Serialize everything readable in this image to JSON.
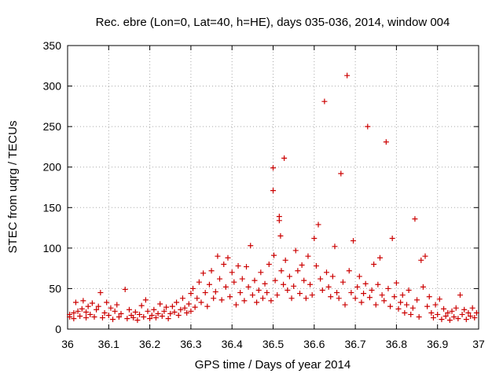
{
  "chart_data": {
    "type": "scatter",
    "title": "Rec. ebre (Lon=0, Lat=40, h=HE), days 035-036, 2014, window 004",
    "xlabel": "GPS time / Days of year 2014",
    "ylabel": "STEC from uqrg / TECUs",
    "xlim": [
      36,
      37
    ],
    "ylim": [
      0,
      350
    ],
    "xticks": [
      "36",
      "36.1",
      "36.2",
      "36.3",
      "36.4",
      "36.5",
      "36.6",
      "36.7",
      "36.8",
      "36.9",
      "37"
    ],
    "yticks": [
      "0",
      "50",
      "100",
      "150",
      "200",
      "250",
      "300",
      "350"
    ],
    "grid": true,
    "marker": "plus",
    "color": "#cc0000",
    "series": [
      {
        "name": "STEC",
        "points": [
          [
            36.005,
            15
          ],
          [
            36.005,
            18
          ],
          [
            36.015,
            13
          ],
          [
            36.015,
            20
          ],
          [
            36.02,
            33
          ],
          [
            36.025,
            22
          ],
          [
            36.03,
            16
          ],
          [
            36.035,
            25
          ],
          [
            36.038,
            35
          ],
          [
            36.045,
            14
          ],
          [
            36.045,
            21
          ],
          [
            36.05,
            28
          ],
          [
            36.055,
            18
          ],
          [
            36.06,
            32
          ],
          [
            36.065,
            15
          ],
          [
            36.07,
            24
          ],
          [
            36.075,
            28
          ],
          [
            36.08,
            45
          ],
          [
            36.085,
            14
          ],
          [
            36.09,
            20
          ],
          [
            36.095,
            33
          ],
          [
            36.1,
            17
          ],
          [
            36.105,
            26
          ],
          [
            36.11,
            12
          ],
          [
            36.115,
            22
          ],
          [
            36.12,
            30
          ],
          [
            36.125,
            15
          ],
          [
            36.13,
            19
          ],
          [
            36.14,
            49
          ],
          [
            36.145,
            13
          ],
          [
            36.15,
            24
          ],
          [
            36.155,
            17
          ],
          [
            36.16,
            14
          ],
          [
            36.165,
            21
          ],
          [
            36.17,
            11
          ],
          [
            36.175,
            18
          ],
          [
            36.18,
            29
          ],
          [
            36.185,
            15
          ],
          [
            36.19,
            36
          ],
          [
            36.195,
            22
          ],
          [
            36.2,
            13
          ],
          [
            36.205,
            17
          ],
          [
            36.21,
            24
          ],
          [
            36.215,
            14
          ],
          [
            36.22,
            19
          ],
          [
            36.225,
            31
          ],
          [
            36.23,
            16
          ],
          [
            36.235,
            22
          ],
          [
            36.24,
            27
          ],
          [
            36.245,
            13
          ],
          [
            36.25,
            19
          ],
          [
            36.255,
            28
          ],
          [
            36.26,
            21
          ],
          [
            36.265,
            33
          ],
          [
            36.27,
            17
          ],
          [
            36.275,
            24
          ],
          [
            36.28,
            38
          ],
          [
            36.285,
            26
          ],
          [
            36.29,
            20
          ],
          [
            36.295,
            31
          ],
          [
            36.3,
            44
          ],
          [
            36.3,
            22
          ],
          [
            36.305,
            50
          ],
          [
            36.31,
            27
          ],
          [
            36.315,
            38
          ],
          [
            36.32,
            58
          ],
          [
            36.325,
            33
          ],
          [
            36.33,
            69
          ],
          [
            36.335,
            45
          ],
          [
            36.34,
            28
          ],
          [
            36.345,
            55
          ],
          [
            36.35,
            72
          ],
          [
            36.355,
            38
          ],
          [
            36.36,
            46
          ],
          [
            36.365,
            90
          ],
          [
            36.37,
            62
          ],
          [
            36.375,
            36
          ],
          [
            36.38,
            80
          ],
          [
            36.385,
            52
          ],
          [
            36.39,
            88
          ],
          [
            36.395,
            40
          ],
          [
            36.4,
            70
          ],
          [
            36.405,
            58
          ],
          [
            36.41,
            30
          ],
          [
            36.415,
            78
          ],
          [
            36.42,
            45
          ],
          [
            36.425,
            62
          ],
          [
            36.43,
            35
          ],
          [
            36.435,
            77
          ],
          [
            36.44,
            52
          ],
          [
            36.445,
            103
          ],
          [
            36.45,
            42
          ],
          [
            36.455,
            60
          ],
          [
            36.46,
            33
          ],
          [
            36.465,
            48
          ],
          [
            36.47,
            70
          ],
          [
            36.475,
            38
          ],
          [
            36.48,
            56
          ],
          [
            36.485,
            45
          ],
          [
            36.49,
            80
          ],
          [
            36.495,
            35
          ],
          [
            36.5,
            199
          ],
          [
            36.5,
            171
          ],
          [
            36.502,
            91
          ],
          [
            36.505,
            60
          ],
          [
            36.51,
            42
          ],
          [
            36.515,
            139
          ],
          [
            36.515,
            134
          ],
          [
            36.518,
            115
          ],
          [
            36.52,
            72
          ],
          [
            36.525,
            55
          ],
          [
            36.527,
            211
          ],
          [
            36.53,
            85
          ],
          [
            36.535,
            48
          ],
          [
            36.54,
            65
          ],
          [
            36.545,
            38
          ],
          [
            36.55,
            53
          ],
          [
            36.555,
            97
          ],
          [
            36.56,
            72
          ],
          [
            36.565,
            44
          ],
          [
            36.57,
            79
          ],
          [
            36.575,
            60
          ],
          [
            36.58,
            38
          ],
          [
            36.585,
            90
          ],
          [
            36.59,
            55
          ],
          [
            36.595,
            42
          ],
          [
            36.6,
            112
          ],
          [
            36.605,
            78
          ],
          [
            36.61,
            129
          ],
          [
            36.615,
            62
          ],
          [
            36.62,
            48
          ],
          [
            36.625,
            281
          ],
          [
            36.63,
            70
          ],
          [
            36.635,
            52
          ],
          [
            36.64,
            40
          ],
          [
            36.645,
            65
          ],
          [
            36.65,
            102
          ],
          [
            36.655,
            45
          ],
          [
            36.66,
            38
          ],
          [
            36.665,
            192
          ],
          [
            36.67,
            58
          ],
          [
            36.675,
            30
          ],
          [
            36.68,
            313
          ],
          [
            36.685,
            72
          ],
          [
            36.69,
            45
          ],
          [
            36.695,
            109
          ],
          [
            36.7,
            38
          ],
          [
            36.705,
            52
          ],
          [
            36.71,
            65
          ],
          [
            36.715,
            33
          ],
          [
            36.72,
            44
          ],
          [
            36.725,
            56
          ],
          [
            36.73,
            250
          ],
          [
            36.735,
            39
          ],
          [
            36.74,
            48
          ],
          [
            36.745,
            80
          ],
          [
            36.75,
            30
          ],
          [
            36.755,
            55
          ],
          [
            36.76,
            88
          ],
          [
            36.765,
            42
          ],
          [
            36.77,
            35
          ],
          [
            36.775,
            231
          ],
          [
            36.78,
            50
          ],
          [
            36.785,
            28
          ],
          [
            36.79,
            112
          ],
          [
            36.795,
            40
          ],
          [
            36.8,
            57
          ],
          [
            36.805,
            25
          ],
          [
            36.81,
            33
          ],
          [
            36.815,
            42
          ],
          [
            36.82,
            20
          ],
          [
            36.825,
            30
          ],
          [
            36.83,
            48
          ],
          [
            36.835,
            18
          ],
          [
            36.84,
            26
          ],
          [
            36.845,
            136
          ],
          [
            36.85,
            36
          ],
          [
            36.855,
            15
          ],
          [
            36.86,
            85
          ],
          [
            36.865,
            52
          ],
          [
            36.87,
            90
          ],
          [
            36.875,
            28
          ],
          [
            36.88,
            40
          ],
          [
            36.885,
            20
          ],
          [
            36.89,
            14
          ],
          [
            36.895,
            30
          ],
          [
            36.9,
            18
          ],
          [
            36.905,
            37
          ],
          [
            36.91,
            12
          ],
          [
            36.915,
            25
          ],
          [
            36.92,
            16
          ],
          [
            36.925,
            20
          ],
          [
            36.93,
            11
          ],
          [
            36.935,
            22
          ],
          [
            36.94,
            15
          ],
          [
            36.945,
            26
          ],
          [
            36.95,
            13
          ],
          [
            36.955,
            42
          ],
          [
            36.96,
            18
          ],
          [
            36.965,
            24
          ],
          [
            36.97,
            12
          ],
          [
            36.975,
            20
          ],
          [
            36.98,
            16
          ],
          [
            36.985,
            26
          ],
          [
            36.99,
            14
          ],
          [
            36.995,
            20
          ]
        ]
      }
    ]
  }
}
